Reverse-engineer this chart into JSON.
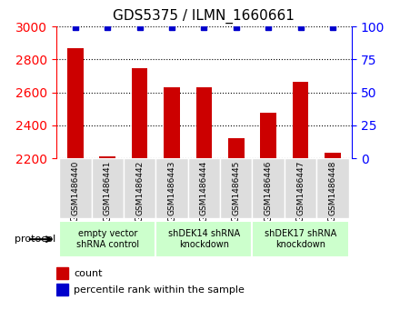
{
  "title": "GDS5375 / ILMN_1660661",
  "samples": [
    "GSM1486440",
    "GSM1486441",
    "GSM1486442",
    "GSM1486443",
    "GSM1486444",
    "GSM1486445",
    "GSM1486446",
    "GSM1486447",
    "GSM1486448"
  ],
  "counts": [
    2870,
    2215,
    2745,
    2630,
    2630,
    2325,
    2475,
    2665,
    2235
  ],
  "percentiles": [
    99,
    99,
    99,
    99,
    99,
    99,
    99,
    99,
    99
  ],
  "ylim_left": [
    2200,
    3000
  ],
  "ylim_right": [
    0,
    100
  ],
  "yticks_left": [
    2200,
    2400,
    2600,
    2800,
    3000
  ],
  "yticks_right": [
    0,
    25,
    50,
    75,
    100
  ],
  "groups": [
    {
      "label": "empty vector\nshRNA control",
      "start": 0,
      "end": 3,
      "color": "#ccffcc"
    },
    {
      "label": "shDEK14 shRNA\nknockdown",
      "start": 3,
      "end": 6,
      "color": "#ccffcc"
    },
    {
      "label": "shDEK17 shRNA\nknockdown",
      "start": 6,
      "end": 9,
      "color": "#ccffcc"
    }
  ],
  "bar_color": "#cc0000",
  "dot_color": "#0000cc",
  "bar_width": 0.5,
  "grid_color": "#000000",
  "bg_color": "#dddddd",
  "protocol_label": "protocol",
  "legend_count_label": "count",
  "legend_pct_label": "percentile rank within the sample"
}
